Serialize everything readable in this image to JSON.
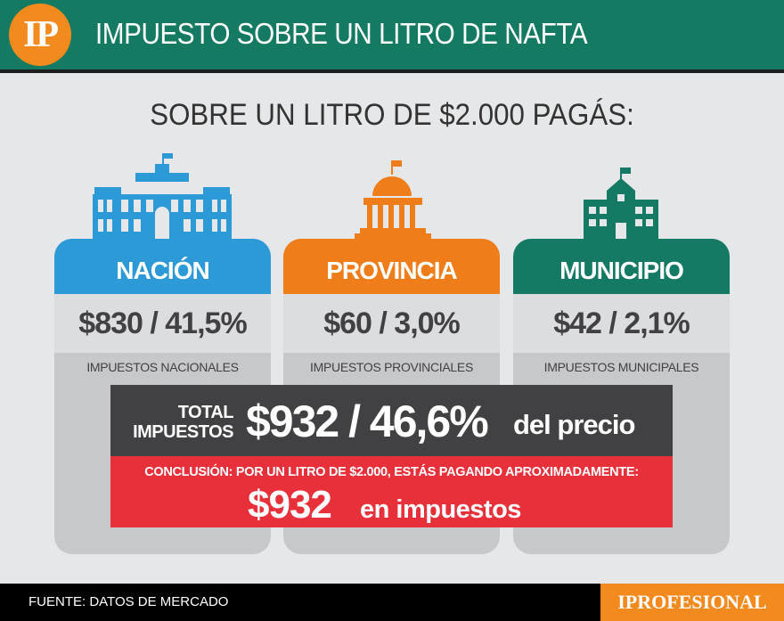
{
  "header": {
    "logo_text": "IP",
    "title": "IMPUESTO SOBRE UN LITRO DE NAFTA",
    "bar_color": "#147a62",
    "logo_color": "#f28a1e"
  },
  "subtitle": "SOBRE UN LITRO DE $2.000 PAGÁS:",
  "cards": [
    {
      "icon": "national-building-icon",
      "title": "NACIÓN",
      "value": "$830 / 41,5%",
      "label": "IMPUESTOS NACIONALES",
      "color": "#2d9ad8"
    },
    {
      "icon": "provincial-building-icon",
      "title": "PROVINCIA",
      "value": "$60 / 3,0%",
      "label": "IMPUESTOS  PROVINCIALES",
      "color": "#ef7d1a"
    },
    {
      "icon": "municipal-building-icon",
      "title": "MUNICIPIO",
      "value": "$42 / 2,1%",
      "label": "IMPUESTOS MUNICIPALES",
      "color": "#157a64"
    }
  ],
  "total": {
    "label_line1": "TOTAL",
    "label_line2": "IMPUESTOS",
    "value": "$932 / 46,6%",
    "suffix": "del precio",
    "color": "#414042"
  },
  "conclusion": {
    "text": "CONCLUSIÓN: POR UN LITRO DE $2.000, ESTÁS PAGANDO APROXIMADAMENTE:",
    "amount": "$932",
    "suffix": "en impuestos",
    "color": "#e8303a"
  },
  "footer": {
    "source": "FUENTE: DATOS DE MERCADO",
    "brand": "IPROFESIONAL"
  }
}
